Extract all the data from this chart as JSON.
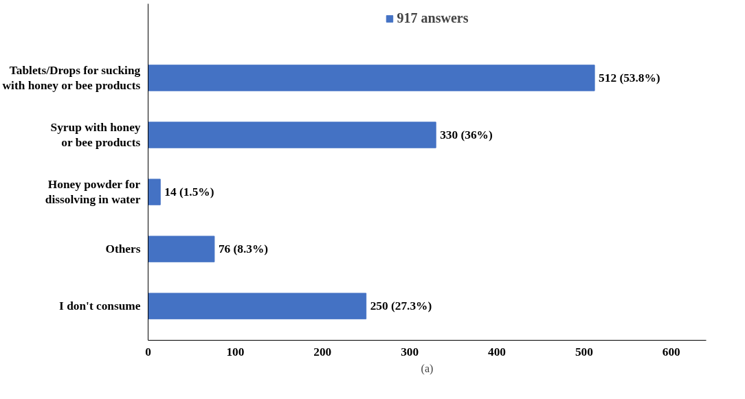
{
  "chart_data": {
    "type": "bar",
    "orientation": "horizontal",
    "categories": [
      "Tablets/Drops for sucking with honey or bee products",
      "Syrup with honey or bee products",
      "Honey powder for dissolving in water",
      "Others",
      "I don't consume"
    ],
    "series": [
      {
        "name": "917 answers",
        "color": "#4472c4",
        "values": [
          512,
          330,
          14,
          76,
          250
        ]
      }
    ],
    "value_labels": [
      "512 (53.8%)",
      "330 (36%)",
      "14 (1.5%)",
      "76 (8.3%)",
      "250 (27.3%)"
    ],
    "xlim": [
      0,
      640
    ],
    "xticks": [
      0,
      100,
      200,
      300,
      400,
      500,
      600
    ],
    "grid": false,
    "legend": "top",
    "annotations": [
      "(a)"
    ]
  }
}
